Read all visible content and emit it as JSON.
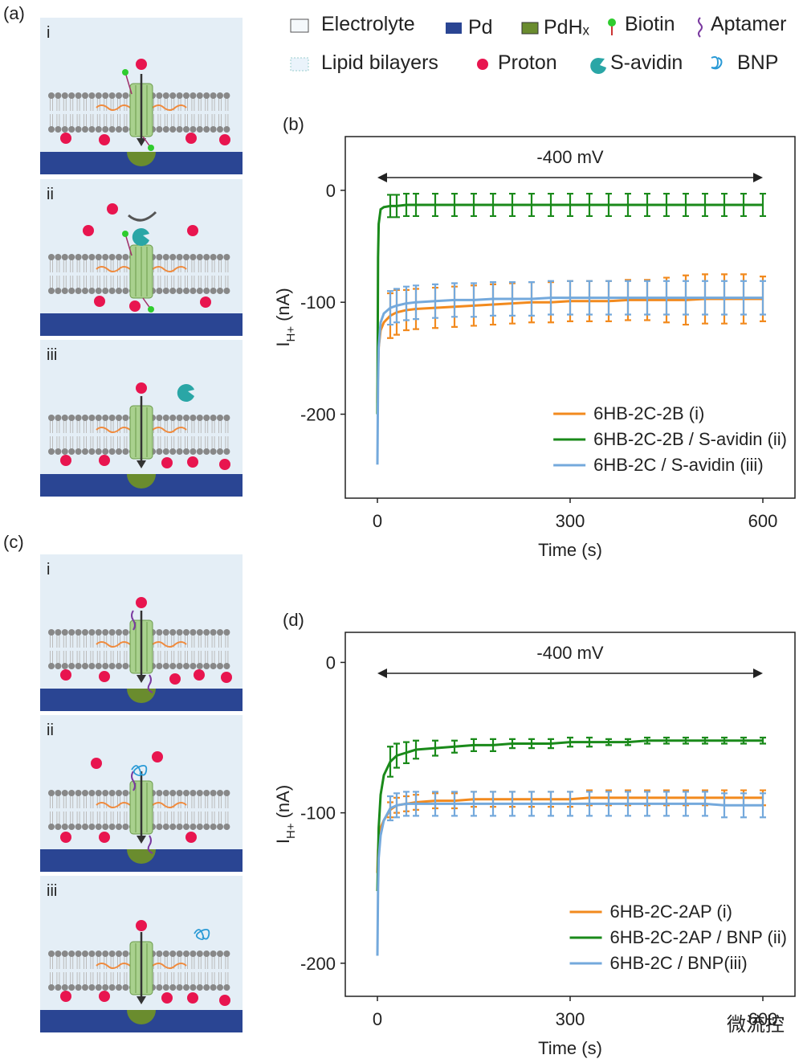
{
  "labels": {
    "a": "(a)",
    "c": "(c)"
  },
  "schemes": {
    "a": [
      "i",
      "ii",
      "iii"
    ],
    "c": [
      "i",
      "ii",
      "iii"
    ]
  },
  "legend": [
    "Electrolyte",
    "Pd",
    "PdHₓ",
    "Biotin",
    "Aptamer",
    "Lipid bilayers",
    "Proton",
    "S-avidin",
    "BNP"
  ],
  "watermark": "微流控",
  "chart_data": [
    {
      "type": "line",
      "title": "(b)",
      "annotation": "-400 mV",
      "xlabel": "Time (s)",
      "ylabel": {
        "main": "I",
        "sub": "H+",
        "unit": "(nA)"
      },
      "xlim": [
        -50,
        650
      ],
      "xticks": [
        0,
        300,
        600
      ],
      "ylim": [
        -275,
        48
      ],
      "yticks": [
        0,
        -100,
        -200
      ],
      "legend": "lower right",
      "x": [
        0,
        1,
        2,
        5,
        10,
        20,
        30,
        45,
        60,
        90,
        120,
        150,
        180,
        210,
        240,
        270,
        300,
        330,
        360,
        390,
        420,
        450,
        480,
        510,
        540,
        570,
        600
      ],
      "series": [
        {
          "name": "6HB-2C-2B (i)",
          "color": "#f28a1e",
          "values": [
            -190,
            -160,
            -140,
            -125,
            -118,
            -112,
            -109,
            -107,
            -106,
            -105,
            -104,
            -103,
            -102,
            -101,
            -100,
            -100,
            -99,
            -99,
            -99,
            -98,
            -98,
            -98,
            -98,
            -97,
            -97,
            -97,
            -97
          ],
          "errors": [
            null,
            null,
            null,
            null,
            null,
            20,
            20,
            18,
            18,
            18,
            18,
            18,
            18,
            18,
            18,
            18,
            18,
            18,
            18,
            18,
            18,
            20,
            22,
            22,
            22,
            22,
            20
          ]
        },
        {
          "name": "6HB-2C-2B / S-avidin (ii)",
          "color": "#1a8a1a",
          "values": [
            -200,
            -60,
            -30,
            -17,
            -15,
            -14,
            -14,
            -13,
            -13,
            -13,
            -13,
            -13,
            -13,
            -13,
            -13,
            -13,
            -13,
            -13,
            -13,
            -13,
            -13,
            -13,
            -13,
            -13,
            -13,
            -13,
            -13
          ],
          "errors": [
            null,
            null,
            null,
            null,
            null,
            10,
            10,
            10,
            10,
            10,
            10,
            10,
            10,
            10,
            10,
            10,
            10,
            10,
            10,
            10,
            10,
            10,
            10,
            10,
            10,
            10,
            10
          ]
        },
        {
          "name": "6HB-2C / S-avidin (iii)",
          "color": "#74a9dc",
          "values": [
            -245,
            -170,
            -140,
            -118,
            -110,
            -105,
            -103,
            -101,
            -100,
            -99,
            -98,
            -98,
            -97,
            -97,
            -97,
            -96,
            -96,
            -96,
            -96,
            -96,
            -96,
            -96,
            -96,
            -96,
            -96,
            -96,
            -96
          ],
          "errors": [
            null,
            null,
            null,
            null,
            null,
            15,
            15,
            15,
            15,
            15,
            15,
            15,
            15,
            15,
            15,
            15,
            15,
            15,
            15,
            15,
            15,
            15,
            15,
            15,
            15,
            15,
            15
          ]
        }
      ]
    },
    {
      "type": "line",
      "title": "(d)",
      "annotation": "-400 mV",
      "xlabel": "Time (s)",
      "ylabel": {
        "main": "I",
        "sub": "H+",
        "unit": "(nA)"
      },
      "xlim": [
        -50,
        650
      ],
      "xticks": [
        0,
        300,
        600
      ],
      "ylim": [
        -222,
        20
      ],
      "yticks": [
        0,
        -100,
        -200
      ],
      "legend": "lower right",
      "x": [
        0,
        1,
        2,
        5,
        10,
        20,
        30,
        45,
        60,
        90,
        120,
        150,
        180,
        210,
        240,
        270,
        300,
        330,
        360,
        390,
        420,
        450,
        480,
        510,
        540,
        570,
        600
      ],
      "series": [
        {
          "name": "6HB-2C-2AP (i)",
          "color": "#f28a1e",
          "values": [
            -140,
            -125,
            -118,
            -110,
            -105,
            -98,
            -95,
            -94,
            -93,
            -92,
            -92,
            -91,
            -91,
            -91,
            -91,
            -91,
            -91,
            -90,
            -90,
            -90,
            -90,
            -90,
            -90,
            -90,
            -90,
            -90,
            -90
          ],
          "errors": [
            null,
            null,
            null,
            null,
            null,
            5,
            5,
            5,
            5,
            5,
            5,
            5,
            5,
            5,
            5,
            5,
            5,
            5,
            5,
            5,
            5,
            5,
            5,
            5,
            5,
            5,
            5
          ]
        },
        {
          "name": "6HB-2C-2AP / BNP (ii)",
          "color": "#1a8a1a",
          "values": [
            -152,
            -130,
            -110,
            -88,
            -75,
            -66,
            -62,
            -60,
            -58,
            -57,
            -56,
            -55,
            -55,
            -54,
            -54,
            -54,
            -53,
            -53,
            -53,
            -53,
            -52,
            -52,
            -52,
            -52,
            -52,
            -52,
            -52
          ],
          "errors": [
            null,
            null,
            null,
            null,
            null,
            10,
            8,
            7,
            6,
            5,
            4,
            4,
            4,
            3,
            3,
            3,
            3,
            3,
            2,
            2,
            2,
            2,
            2,
            2,
            2,
            2,
            2
          ]
        },
        {
          "name": "6HB-2C / BNP(iii)",
          "color": "#74a9dc",
          "values": [
            -195,
            -150,
            -130,
            -115,
            -105,
            -97,
            -95,
            -94,
            -94,
            -94,
            -94,
            -94,
            -94,
            -94,
            -94,
            -94,
            -94,
            -94,
            -94,
            -94,
            -94,
            -94,
            -94,
            -94,
            -95,
            -95,
            -95
          ],
          "errors": [
            null,
            null,
            null,
            null,
            null,
            8,
            8,
            8,
            8,
            8,
            8,
            8,
            8,
            8,
            8,
            8,
            8,
            8,
            8,
            8,
            8,
            8,
            8,
            8,
            8,
            8,
            8
          ]
        }
      ]
    }
  ]
}
